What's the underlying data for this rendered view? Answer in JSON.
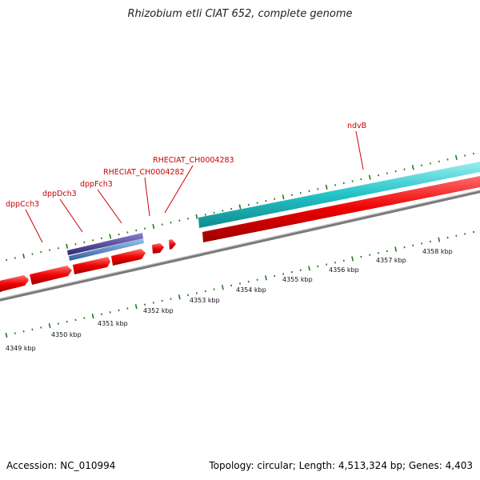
{
  "title": "Rhizobium etli CIAT 652, complete genome",
  "footer": {
    "accession": "Accession: NC_010994",
    "summary": "Topology: circular; Length: 4,513,324 bp; Genes: 4,403"
  },
  "scale_labels": [
    "4349 kbp",
    "4350 kbp",
    "4351 kbp",
    "4352 kbp",
    "4353 kbp",
    "4354 kbp",
    "4355 kbp",
    "4356 kbp",
    "4357 kbp",
    "4358 kbp"
  ],
  "gene_labels": [
    "dppCch3",
    "dppDch3",
    "dppFch3",
    "RHECIAT_CH0004282",
    "RHECIAT_CH0004283",
    "ndvB"
  ],
  "colors": {
    "cds": "#ee0000",
    "backbone": "#777777",
    "ticks": "#1e7a1e",
    "label_red": "#cc0000",
    "cyan_feature": "#22c4c8",
    "purple_feature": "#4b3f8f",
    "blue_feature": "#4f86c6"
  }
}
